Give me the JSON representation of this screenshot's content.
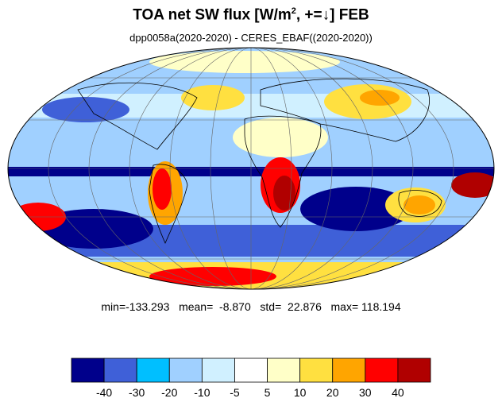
{
  "title": {
    "prefix": "TOA net SW flux [W/m",
    "sup": "2",
    "suffix": ", +=↓]  FEB"
  },
  "subtitle": "dpp0058a(2020-2020) - CERES_EBAF((2020-2020))",
  "stats": {
    "text": "min=-133.293   mean=  -8.870   std=  22.876   max= 118.194"
  },
  "map": {
    "projection": "mollweide",
    "grid": true,
    "coastlines": true
  },
  "colorbar": {
    "colors": [
      "#00008b",
      "#3f60d8",
      "#00bfff",
      "#a0d0ff",
      "#d0f0ff",
      "#ffffff",
      "#ffffc8",
      "#ffe040",
      "#ffa500",
      "#ff0000",
      "#b00000"
    ],
    "labels": [
      "-40",
      "-30",
      "-20",
      "-10",
      "-5",
      "5",
      "10",
      "20",
      "30",
      "40"
    ]
  }
}
